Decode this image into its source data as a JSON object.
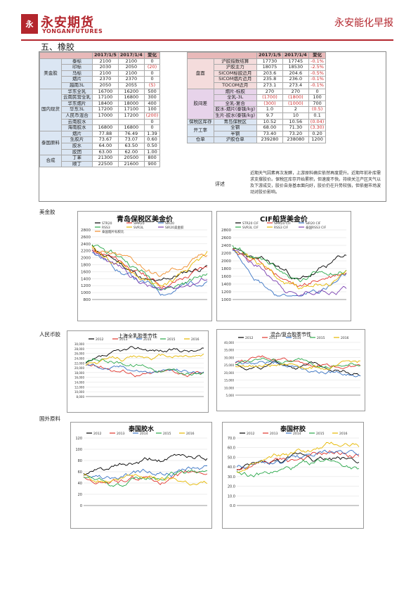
{
  "header": {
    "logo_mark": "yonganfutures-logo",
    "logo_cn": "永安期货",
    "logo_en": "YONGANFUTURES",
    "report_title": "永安能化早报"
  },
  "section_title": "五、橡胶",
  "table": {
    "left_header": [
      "",
      "",
      "2017/1/5",
      "2017/1/4",
      "变化"
    ],
    "right_header": [
      "",
      "",
      "2017/1/5",
      "2017/1/4",
      "变化"
    ],
    "left_groups": [
      {
        "name": "美金胶",
        "rows": [
          [
            "泰标",
            "2100",
            "2100",
            "0"
          ],
          [
            "印标",
            "2030",
            "2050",
            "(20)"
          ],
          [
            "马标",
            "2100",
            "2100",
            "0"
          ],
          [
            "烟片",
            "2370",
            "2370",
            "0"
          ],
          [
            "越南3L",
            "2050",
            "2055",
            "(5)"
          ]
        ]
      },
      {
        "name": "国内现货",
        "rows": [
          [
            "华东全乳",
            "16700",
            "16200",
            "500"
          ],
          [
            "云南民营全乳",
            "17100",
            "16800",
            "300"
          ],
          [
            "华东烟片",
            "18400",
            "18000",
            "400"
          ],
          [
            "华东3L",
            "17200",
            "17100",
            "100"
          ],
          [
            "人民币混合",
            "17000",
            "17200",
            "(200)"
          ],
          [
            "云南胶水",
            "",
            "",
            "0"
          ],
          [
            "海南胶水",
            "16800",
            "16800",
            "0"
          ]
        ]
      },
      {
        "name": "泰国原料",
        "rows": [
          [
            "烟片",
            "77.88",
            "76.49",
            "1.39"
          ],
          [
            "生胶片",
            "73.67",
            "73.07",
            "0.60"
          ],
          [
            "胶水",
            "64.00",
            "63.50",
            "0.50"
          ],
          [
            "胶团",
            "63.00",
            "62.00",
            "1.00"
          ]
        ]
      },
      {
        "name": "合成",
        "rows": [
          [
            "丁苯",
            "21300",
            "20500",
            "800"
          ],
          [
            "顺丁",
            "22500",
            "21600",
            "900"
          ]
        ]
      }
    ],
    "right_groups": [
      {
        "name": "盘面",
        "rows": [
          [
            "沪胶指数结算",
            "17730",
            "17745",
            "-0.1%"
          ],
          [
            "沪胶主力",
            "18075",
            "18530",
            "-2.5%"
          ],
          [
            "SICOM标胶近月",
            "203.6",
            "204.6",
            "-0.5%"
          ],
          [
            "SICOM烟片近月",
            "235.8",
            "236.0",
            "-0.1%"
          ],
          [
            "TOCOM近月",
            "273.1",
            "273.4",
            "-0.1%"
          ]
        ]
      },
      {
        "name": "胶间差",
        "rows": [
          [
            "烟片-标胶",
            "270",
            "270",
            "0"
          ],
          [
            "全乳-3L",
            "(1700)",
            "(1800)",
            "100"
          ],
          [
            "全乳-复合",
            "(300)",
            "(1000)",
            "700"
          ],
          [
            "胶水-烟片(泰铢/kg)",
            "1.0",
            "2",
            "(0.5)"
          ],
          [
            "生片-胶水(泰铢/kg)",
            "9.7",
            "10",
            "0.1"
          ]
        ]
      },
      {
        "name": "保税区库存",
        "rows": [
          [
            "青岛保税区",
            "10.52",
            "10.56",
            "(0.04)"
          ]
        ]
      },
      {
        "name": "开工率",
        "rows": [
          [
            "全钢",
            "68.00",
            "71.30",
            "(3.30)"
          ],
          [
            "半钢",
            "73.40",
            "73.20",
            "0.20"
          ]
        ]
      },
      {
        "name": "仓单",
        "rows": [
          [
            "沪胶仓单",
            "239280",
            "238080",
            "1200"
          ]
        ]
      }
    ],
    "comment_label": "评述",
    "comment_text": "近期天气因素再次发酵，上游原料确实依然再度提升。近期年前补库需求支撑胶价。保税区库存开始累积，但速度不快。持续关注产区天气以及下游成交，胶价自身基本面向好，胶价仍在升势较强，但依据市场波动对胶价影响。"
  },
  "groups": {
    "usd": "美金胶",
    "rmb": "人民币胶",
    "thai": "国外原料"
  },
  "charts": {
    "c1": {
      "title": "青岛保税区美金价",
      "legend": [
        "STR20",
        "SMR20",
        "SIR20",
        "RSS3",
        "SVR3L",
        "SIR20美金胶",
        "泰国烟片标胶比"
      ],
      "yticks": [
        "2800",
        "2600",
        "2400",
        "2200",
        "2000",
        "1800",
        "1600",
        "1400",
        "1200",
        "1000",
        "800"
      ]
    },
    "c2": {
      "title": "CIF船货美金价",
      "legend": [
        "STR20 CIF",
        "SMR20 CIF",
        "SIR20 CIF",
        "SVR3L CIF",
        "RSS3 CIF",
        "泰国RSS3 CIF"
      ],
      "yticks": [
        "2800",
        "2600",
        "2400",
        "2200",
        "2000",
        "1800",
        "1600",
        "1400",
        "1200",
        "1000"
      ]
    },
    "c3": {
      "title": "上海全乳胶季节性",
      "legend": [
        "2012",
        "2013",
        "2014",
        "2015",
        "2016"
      ],
      "yticks": [
        "30,000",
        "28,000",
        "26,000",
        "24,000",
        "22,000",
        "20,000",
        "18,000",
        "16,000",
        "14,000",
        "12,000",
        "10,000",
        "8,000"
      ]
    },
    "c4": {
      "title": "混合/复合胶季节性",
      "legend": [
        "2012",
        "2013",
        "2014",
        "2015",
        "2016"
      ],
      "yticks": [
        "40,000",
        "35,000",
        "30,000",
        "25,000",
        "20,000",
        "15,000",
        "10,000",
        "5,000"
      ]
    },
    "c5": {
      "title": "泰国胶水",
      "legend": [
        "2012",
        "2013",
        "2014",
        "2015",
        "2016"
      ],
      "yticks": [
        "120",
        "100",
        "80",
        "60",
        "40",
        "20",
        "0"
      ]
    },
    "c6": {
      "title": "泰国杯胶",
      "legend": [
        "2012",
        "2013",
        "2014",
        "2015",
        "2016"
      ],
      "yticks": [
        "70.0",
        "60.0",
        "50.0",
        "40.0",
        "30.0",
        "20.0",
        "10.0",
        "0.0"
      ]
    }
  },
  "colors": {
    "brand": "#b3262d",
    "header_row": "#e8b9b9"
  }
}
